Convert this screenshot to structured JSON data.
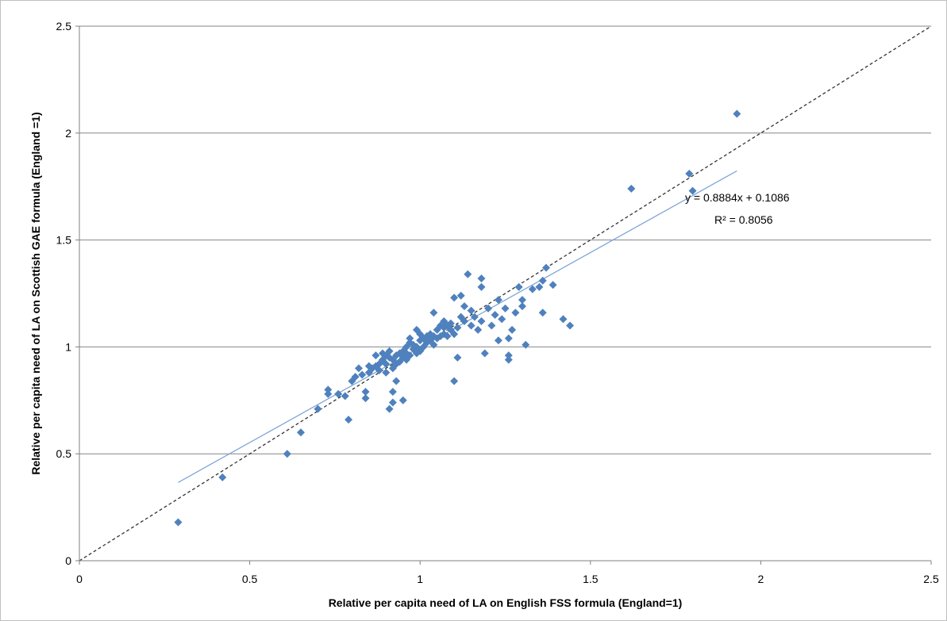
{
  "chart_data": {
    "type": "scatter",
    "title": "",
    "xlabel": "Relative per capita need of LA on English FSS formula (England=1)",
    "ylabel": "Relative per capita need of LA on Scottish GAE formula (England =1)",
    "xlim": [
      0,
      2.5
    ],
    "ylim": [
      0,
      2.5
    ],
    "x_ticks": [
      "0",
      "0.5",
      "1",
      "1.5",
      "2",
      "2.5"
    ],
    "y_ticks": [
      "0",
      "0.5",
      "1",
      "1.5",
      "2",
      "2.5"
    ],
    "grid": "horizontal",
    "legend": "none",
    "marker_color": "#4F81BD",
    "trendline": {
      "slope": 0.8884,
      "intercept": 0.1086,
      "x_range": [
        0.29,
        1.93
      ],
      "color": "#7FA7D9",
      "equation_label": "y = 0.8884x + 0.1086",
      "r2_label": "R² = 0.8056"
    },
    "reference_line": {
      "from": [
        0,
        0
      ],
      "to": [
        2.5,
        2.5
      ],
      "style": "dashed",
      "color": "#333333"
    },
    "points": [
      [
        0.29,
        0.18
      ],
      [
        0.42,
        0.39
      ],
      [
        0.61,
        0.5
      ],
      [
        0.65,
        0.6
      ],
      [
        0.7,
        0.71
      ],
      [
        0.73,
        0.78
      ],
      [
        0.73,
        0.8
      ],
      [
        0.76,
        0.78
      ],
      [
        0.78,
        0.77
      ],
      [
        0.79,
        0.66
      ],
      [
        0.8,
        0.84
      ],
      [
        0.81,
        0.86
      ],
      [
        0.82,
        0.9
      ],
      [
        0.83,
        0.87
      ],
      [
        0.84,
        0.79
      ],
      [
        0.84,
        0.76
      ],
      [
        0.85,
        0.88
      ],
      [
        0.85,
        0.91
      ],
      [
        0.86,
        0.9
      ],
      [
        0.87,
        0.91
      ],
      [
        0.87,
        0.96
      ],
      [
        0.88,
        0.89
      ],
      [
        0.88,
        0.92
      ],
      [
        0.89,
        0.94
      ],
      [
        0.89,
        0.97
      ],
      [
        0.9,
        0.88
      ],
      [
        0.9,
        0.92
      ],
      [
        0.9,
        0.96
      ],
      [
        0.91,
        0.71
      ],
      [
        0.91,
        0.95
      ],
      [
        0.91,
        0.98
      ],
      [
        0.92,
        0.74
      ],
      [
        0.92,
        0.79
      ],
      [
        0.92,
        0.9
      ],
      [
        0.92,
        0.94
      ],
      [
        0.93,
        0.84
      ],
      [
        0.93,
        0.92
      ],
      [
        0.93,
        0.96
      ],
      [
        0.94,
        0.93
      ],
      [
        0.94,
        0.97
      ],
      [
        0.95,
        0.75
      ],
      [
        0.95,
        0.95
      ],
      [
        0.95,
        0.98
      ],
      [
        0.96,
        0.94
      ],
      [
        0.96,
        0.97
      ],
      [
        0.96,
        1.0
      ],
      [
        0.97,
        0.96
      ],
      [
        0.97,
        1.02
      ],
      [
        0.97,
        1.04
      ],
      [
        0.98,
        0.99
      ],
      [
        0.98,
        1.01
      ],
      [
        0.99,
        0.97
      ],
      [
        0.99,
        1.0
      ],
      [
        0.99,
        1.08
      ],
      [
        1.0,
        0.98
      ],
      [
        1.0,
        1.03
      ],
      [
        1.0,
        1.06
      ],
      [
        1.01,
        1.0
      ],
      [
        1.01,
        1.04
      ],
      [
        1.02,
        1.02
      ],
      [
        1.02,
        1.05
      ],
      [
        1.03,
        1.03
      ],
      [
        1.03,
        1.06
      ],
      [
        1.04,
        1.01
      ],
      [
        1.04,
        1.05
      ],
      [
        1.04,
        1.16
      ],
      [
        1.05,
        1.04
      ],
      [
        1.05,
        1.08
      ],
      [
        1.06,
        1.05
      ],
      [
        1.06,
        1.1
      ],
      [
        1.07,
        1.06
      ],
      [
        1.07,
        1.09
      ],
      [
        1.07,
        1.12
      ],
      [
        1.08,
        1.05
      ],
      [
        1.08,
        1.1
      ],
      [
        1.09,
        1.08
      ],
      [
        1.09,
        1.11
      ],
      [
        1.1,
        0.84
      ],
      [
        1.1,
        1.23
      ],
      [
        1.1,
        1.06
      ],
      [
        1.11,
        0.95
      ],
      [
        1.11,
        1.09
      ],
      [
        1.12,
        1.14
      ],
      [
        1.12,
        1.24
      ],
      [
        1.13,
        1.12
      ],
      [
        1.13,
        1.19
      ],
      [
        1.14,
        1.34
      ],
      [
        1.15,
        1.1
      ],
      [
        1.15,
        1.17
      ],
      [
        1.16,
        1.14
      ],
      [
        1.17,
        1.08
      ],
      [
        1.18,
        1.12
      ],
      [
        1.18,
        1.28
      ],
      [
        1.18,
        1.32
      ],
      [
        1.19,
        0.97
      ],
      [
        1.2,
        1.18
      ],
      [
        1.21,
        1.1
      ],
      [
        1.22,
        1.15
      ],
      [
        1.23,
        1.03
      ],
      [
        1.23,
        1.22
      ],
      [
        1.24,
        1.13
      ],
      [
        1.25,
        1.18
      ],
      [
        1.26,
        0.94
      ],
      [
        1.26,
        1.04
      ],
      [
        1.26,
        0.96
      ],
      [
        1.27,
        1.08
      ],
      [
        1.28,
        1.16
      ],
      [
        1.29,
        1.28
      ],
      [
        1.3,
        1.22
      ],
      [
        1.3,
        1.19
      ],
      [
        1.31,
        1.01
      ],
      [
        1.33,
        1.27
      ],
      [
        1.35,
        1.28
      ],
      [
        1.36,
        1.31
      ],
      [
        1.36,
        1.16
      ],
      [
        1.37,
        1.37
      ],
      [
        1.39,
        1.29
      ],
      [
        1.42,
        1.13
      ],
      [
        1.44,
        1.1
      ],
      [
        1.62,
        1.74
      ],
      [
        1.79,
        1.81
      ],
      [
        1.8,
        1.73
      ],
      [
        1.93,
        2.09
      ]
    ]
  }
}
